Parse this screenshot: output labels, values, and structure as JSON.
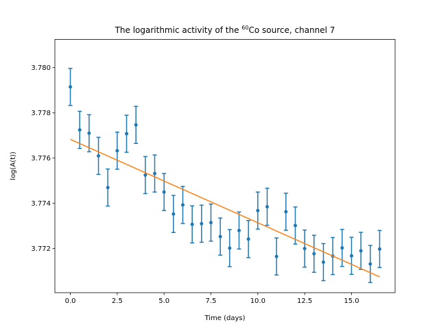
{
  "chart_data": {
    "type": "scatter",
    "title_parts": {
      "before": "The logarithmic activity of the ",
      "superscript": "60",
      "after": "Co source, channel 7"
    },
    "xlabel": "Time (days)",
    "ylabel": "log(A(t))",
    "xlim": [
      -0.825,
      17.325
    ],
    "ylim": [
      3.77005,
      3.78125
    ],
    "xticks": [
      {
        "value": 0,
        "label": "0.0"
      },
      {
        "value": 2.5,
        "label": "2.5"
      },
      {
        "value": 5,
        "label": "5.0"
      },
      {
        "value": 7.5,
        "label": "7.5"
      },
      {
        "value": 10,
        "label": "10.0"
      },
      {
        "value": 12.5,
        "label": "12.5"
      },
      {
        "value": 15,
        "label": "15.0"
      }
    ],
    "yticks": [
      {
        "value": 3.772,
        "label": "3.772"
      },
      {
        "value": 3.774,
        "label": "3.774"
      },
      {
        "value": 3.776,
        "label": "3.776"
      },
      {
        "value": 3.778,
        "label": "3.778"
      },
      {
        "value": 3.78,
        "label": "3.780"
      }
    ],
    "grid": false,
    "series": [
      {
        "kind": "errorbar",
        "color": "#1f77b4",
        "x": [
          0,
          0.5,
          1,
          1.5,
          2,
          2.5,
          3,
          3.5,
          4,
          4.5,
          5,
          5.5,
          6,
          6.5,
          7,
          7.5,
          8,
          8.5,
          9,
          9.5,
          10,
          10.5,
          11,
          11.5,
          12,
          12.5,
          13,
          13.5,
          14,
          14.5,
          15,
          15.5,
          16,
          16.5
        ],
        "y": [
          3.77915,
          3.77725,
          3.7771,
          3.7761,
          3.7747,
          3.77633,
          3.77708,
          3.77747,
          3.77525,
          3.77532,
          3.7745,
          3.77353,
          3.77393,
          3.77307,
          3.7731,
          3.77315,
          3.77253,
          3.77202,
          3.7728,
          3.77242,
          3.77368,
          3.77385,
          3.77165,
          3.77363,
          3.77302,
          3.772,
          3.77177,
          3.7714,
          3.77167,
          3.77203,
          3.77168,
          3.7719,
          3.77132,
          3.77198
        ],
        "yerr": 0.00082
      },
      {
        "kind": "line",
        "color": "#ff7f0e",
        "x": [
          0,
          16.5
        ],
        "y": [
          3.77683,
          3.77075
        ]
      }
    ]
  }
}
